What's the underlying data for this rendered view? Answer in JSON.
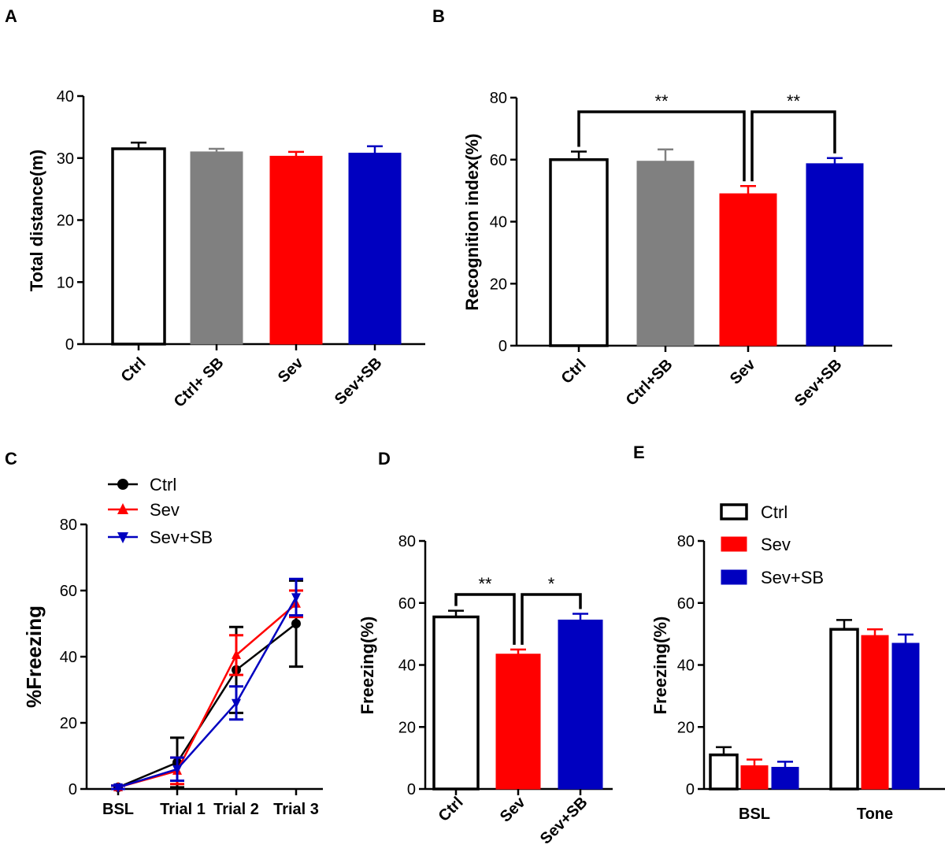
{
  "colors": {
    "black": "#000000",
    "gray": "#808080",
    "red": "#ff0000",
    "blue": "#0000c0",
    "white": "#ffffff"
  },
  "chart_data": [
    {
      "id": "A",
      "type": "bar",
      "panel_label": "A",
      "title": "",
      "xlabel": "",
      "ylabel": "Total distance(m)",
      "ylim": [
        0,
        40
      ],
      "yticks": [
        "0",
        "10",
        "20",
        "30",
        "40"
      ],
      "categories": [
        "Ctrl",
        "Ctrl+ SB",
        "Sev",
        "Sev+SB"
      ],
      "values": [
        31.5,
        31.0,
        30.3,
        30.8
      ],
      "errors": [
        1.0,
        0.5,
        0.7,
        1.1
      ],
      "bar_colors": [
        "white",
        "gray",
        "red",
        "blue"
      ],
      "significance": []
    },
    {
      "id": "B",
      "type": "bar",
      "panel_label": "B",
      "title": "",
      "xlabel": "",
      "ylabel": "Recognition index(%)",
      "ylim": [
        0,
        80
      ],
      "yticks": [
        "0",
        "20",
        "40",
        "60",
        "80"
      ],
      "categories": [
        "Ctrl",
        "Ctrl+SB",
        "Sev",
        "Sev+SB"
      ],
      "values": [
        60.0,
        59.5,
        49.0,
        58.7
      ],
      "errors": [
        2.6,
        3.8,
        2.5,
        1.8
      ],
      "bar_colors": [
        "white",
        "gray",
        "red",
        "blue"
      ],
      "significance": [
        {
          "from": 0,
          "to": 2,
          "label": "**"
        },
        {
          "from": 2,
          "to": 3,
          "label": "**"
        }
      ]
    },
    {
      "id": "C",
      "type": "line",
      "panel_label": "C",
      "title": "",
      "xlabel": "",
      "ylabel": "%Freezing",
      "ylim": [
        0,
        80
      ],
      "yticks": [
        "0",
        "20",
        "40",
        "60",
        "80"
      ],
      "categories": [
        "BSL",
        "Trial 1",
        "Trial 2",
        "Trial 3"
      ],
      "legend_position": "top-left",
      "series": [
        {
          "name": "Ctrl",
          "color": "black",
          "marker": "circle",
          "values": [
            0.5,
            8.0,
            36.0,
            50.0
          ],
          "errors": [
            0.5,
            7.5,
            13.0,
            13.0
          ]
        },
        {
          "name": "Sev",
          "color": "red",
          "marker": "triangle-up",
          "values": [
            0.5,
            5.5,
            40.5,
            56.0
          ],
          "errors": [
            0.5,
            4.0,
            6.0,
            4.0
          ]
        },
        {
          "name": "Sev+SB",
          "color": "blue",
          "marker": "triangle-down",
          "values": [
            0.5,
            6.0,
            26.0,
            58.0
          ],
          "errors": [
            0.5,
            3.5,
            5.0,
            5.5
          ]
        }
      ]
    },
    {
      "id": "D",
      "type": "bar",
      "panel_label": "D",
      "title": "",
      "xlabel": "",
      "ylabel": "Freezing(%)",
      "ylim": [
        0,
        80
      ],
      "yticks": [
        "0",
        "20",
        "40",
        "60",
        "80"
      ],
      "categories": [
        "Ctrl",
        "Sev",
        "Sev+SB"
      ],
      "values": [
        55.5,
        43.5,
        54.5
      ],
      "errors": [
        2.0,
        1.5,
        2.0
      ],
      "bar_colors": [
        "white",
        "red",
        "blue"
      ],
      "significance": [
        {
          "from": 0,
          "to": 1,
          "label": "**"
        },
        {
          "from": 1,
          "to": 2,
          "label": "*"
        }
      ]
    },
    {
      "id": "E",
      "type": "bar",
      "panel_label": "E",
      "title": "",
      "xlabel": "",
      "ylabel": "Freezing(%)",
      "ylim": [
        0,
        80
      ],
      "yticks": [
        "0",
        "20",
        "40",
        "60",
        "80"
      ],
      "categories": [
        "BSL",
        "Tone"
      ],
      "legend_position": "top-left",
      "series": [
        {
          "name": "Ctrl",
          "color": "white",
          "values": [
            11.0,
            51.5
          ],
          "errors": [
            2.5,
            3.0
          ]
        },
        {
          "name": "Sev",
          "color": "red",
          "values": [
            7.5,
            49.5
          ],
          "errors": [
            2.0,
            2.0
          ]
        },
        {
          "name": "Sev+SB",
          "color": "blue",
          "values": [
            7.0,
            47.0
          ],
          "errors": [
            1.8,
            2.8
          ]
        }
      ]
    }
  ]
}
